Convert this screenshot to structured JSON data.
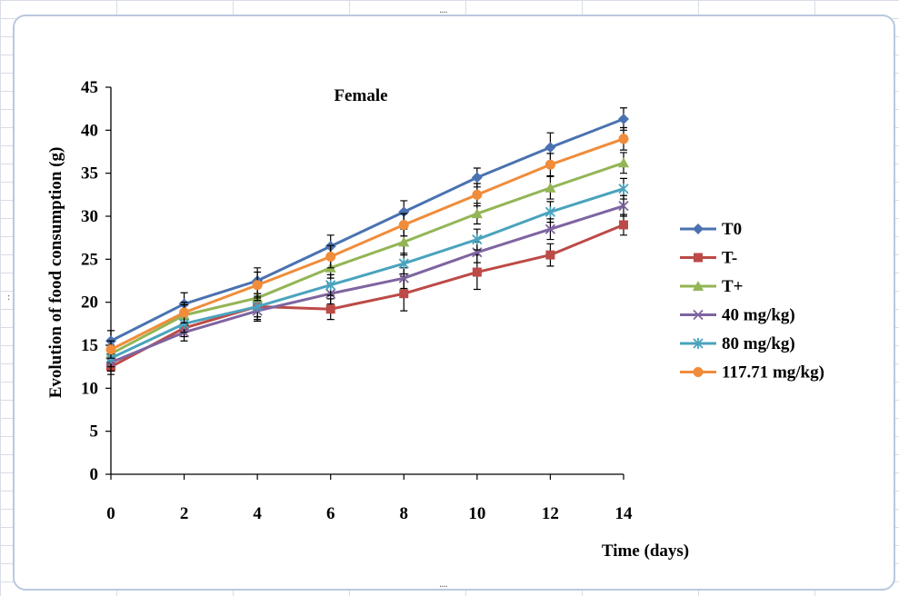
{
  "chart_data": {
    "type": "line",
    "title": "Female",
    "xlabel": "Time (days)",
    "ylabel": "Evolution of food consumption  (g)",
    "x": [
      0,
      2,
      4,
      6,
      8,
      10,
      12,
      14
    ],
    "xlim": [
      0,
      14
    ],
    "ylim": [
      0,
      45
    ],
    "xticks": [
      "0",
      "2",
      "4",
      "6",
      "8",
      "10",
      "12",
      "14"
    ],
    "yticks": [
      "0",
      "5",
      "10",
      "15",
      "20",
      "25",
      "30",
      "35",
      "40",
      "45"
    ],
    "grid": false,
    "legend_position": "right",
    "series": [
      {
        "name": "T0",
        "color": "#4a72b0",
        "marker": "diamond",
        "values": [
          15.5,
          19.8,
          22.5,
          26.5,
          30.5,
          34.5,
          38.0,
          41.3
        ],
        "errors": [
          1.2,
          1.3,
          1.5,
          1.3,
          1.3,
          1.1,
          1.7,
          1.3
        ]
      },
      {
        "name": "T-",
        "color": "#bc4a47",
        "marker": "square",
        "values": [
          12.5,
          17.0,
          19.5,
          19.2,
          21.0,
          23.5,
          25.5,
          29.0
        ],
        "errors": [
          0.9,
          1.0,
          1.5,
          1.2,
          2.0,
          2.0,
          1.3,
          1.2
        ]
      },
      {
        "name": "T+",
        "color": "#93b555",
        "marker": "triangle",
        "values": [
          14.0,
          18.5,
          20.5,
          24.0,
          27.0,
          30.3,
          33.3,
          36.2
        ],
        "errors": [
          1.0,
          1.2,
          1.2,
          1.2,
          1.5,
          1.2,
          1.3,
          1.2
        ]
      },
      {
        "name": "40 mg/kg)",
        "color": "#7e64a0",
        "marker": "x",
        "values": [
          13.0,
          16.5,
          19.0,
          21.0,
          22.8,
          25.8,
          28.5,
          31.2
        ],
        "errors": [
          1.0,
          1.0,
          1.2,
          1.2,
          1.2,
          1.2,
          1.2,
          1.2
        ]
      },
      {
        "name": "80 mg/kg)",
        "color": "#4aa3bd",
        "marker": "asterisk",
        "values": [
          13.5,
          17.5,
          19.5,
          22.0,
          24.5,
          27.3,
          30.5,
          33.2
        ],
        "errors": [
          1.0,
          1.0,
          1.2,
          1.2,
          1.2,
          1.2,
          1.2,
          1.2
        ]
      },
      {
        "name": "117.71 mg/kg)",
        "color": "#f08c3a",
        "marker": "circle",
        "values": [
          14.5,
          18.8,
          22.0,
          25.3,
          29.0,
          32.5,
          36.0,
          39.0
        ],
        "errors": [
          1.0,
          1.2,
          1.5,
          1.3,
          1.3,
          1.3,
          1.3,
          1.3
        ]
      }
    ]
  }
}
